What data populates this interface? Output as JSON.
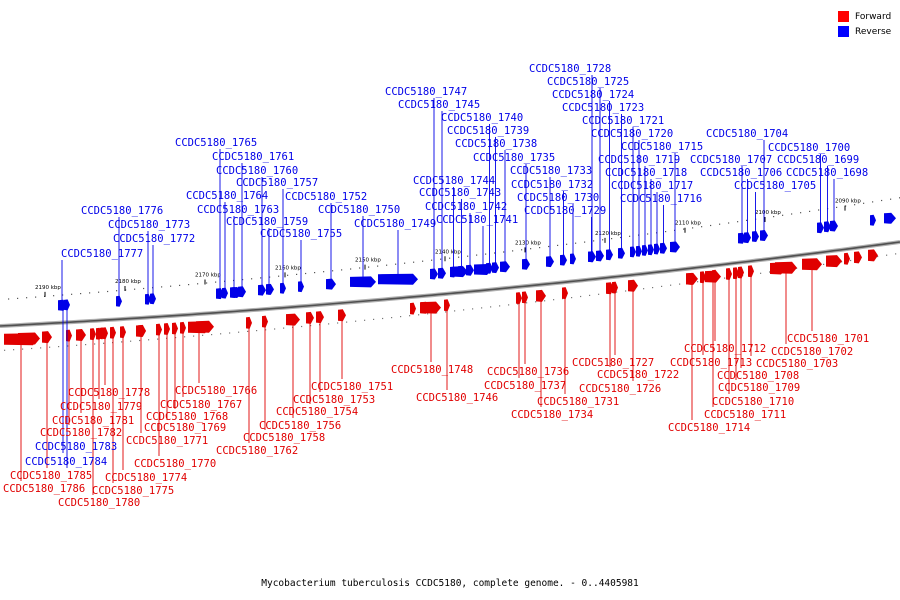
{
  "legend": [
    {
      "label": "Forward",
      "color": "#ff0000"
    },
    {
      "label": "Reverse",
      "color": "#0000ff"
    }
  ],
  "caption": "Mycobacterium tuberculosis CCDC5180, complete genome. - 0..4405981",
  "colors": {
    "forward": "#e00000",
    "reverse": "#0000e8",
    "backbone": "#8a8a8a"
  },
  "ticks": [
    {
      "label": "2190 kbp",
      "kbp": 2190
    },
    {
      "label": "2180 kbp",
      "kbp": 2180
    },
    {
      "label": "2170 kbp",
      "kbp": 2170
    },
    {
      "label": "2160 kbp",
      "kbp": 2160
    },
    {
      "label": "2150 kbp",
      "kbp": 2150
    },
    {
      "label": "2140 kbp",
      "kbp": 2140
    },
    {
      "label": "2130 kbp",
      "kbp": 2130
    },
    {
      "label": "2120 kbp",
      "kbp": 2120
    },
    {
      "label": "2110 kbp",
      "kbp": 2110
    },
    {
      "label": "2100 kbp",
      "kbp": 2100
    },
    {
      "label": "2090 kbp",
      "kbp": 2090
    }
  ],
  "genes": [
    {
      "id": "CCDC5180_1698",
      "strand": "reverse"
    },
    {
      "id": "CCDC5180_1699",
      "strand": "reverse"
    },
    {
      "id": "CCDC5180_1700",
      "strand": "reverse"
    },
    {
      "id": "CCDC5180_1701",
      "strand": "forward"
    },
    {
      "id": "CCDC5180_1702",
      "strand": "forward"
    },
    {
      "id": "CCDC5180_1703",
      "strand": "forward"
    },
    {
      "id": "CCDC5180_1704",
      "strand": "reverse"
    },
    {
      "id": "CCDC5180_1705",
      "strand": "reverse"
    },
    {
      "id": "CCDC5180_1706",
      "strand": "reverse"
    },
    {
      "id": "CCDC5180_1707",
      "strand": "reverse"
    },
    {
      "id": "CCDC5180_1708",
      "strand": "forward"
    },
    {
      "id": "CCDC5180_1709",
      "strand": "forward"
    },
    {
      "id": "CCDC5180_1710",
      "strand": "forward"
    },
    {
      "id": "CCDC5180_1711",
      "strand": "forward"
    },
    {
      "id": "CCDC5180_1712",
      "strand": "forward"
    },
    {
      "id": "CCDC5180_1713",
      "strand": "forward"
    },
    {
      "id": "CCDC5180_1714",
      "strand": "forward"
    },
    {
      "id": "CCDC5180_1715",
      "strand": "reverse"
    },
    {
      "id": "CCDC5180_1716",
      "strand": "reverse"
    },
    {
      "id": "CCDC5180_1717",
      "strand": "reverse"
    },
    {
      "id": "CCDC5180_1718",
      "strand": "reverse"
    },
    {
      "id": "CCDC5180_1719",
      "strand": "reverse"
    },
    {
      "id": "CCDC5180_1720",
      "strand": "reverse"
    },
    {
      "id": "CCDC5180_1721",
      "strand": "reverse"
    },
    {
      "id": "CCDC5180_1722",
      "strand": "forward"
    },
    {
      "id": "CCDC5180_1723",
      "strand": "reverse"
    },
    {
      "id": "CCDC5180_1724",
      "strand": "reverse"
    },
    {
      "id": "CCDC5180_1725",
      "strand": "reverse"
    },
    {
      "id": "CCDC5180_1726",
      "strand": "forward"
    },
    {
      "id": "CCDC5180_1727",
      "strand": "forward"
    },
    {
      "id": "CCDC5180_1728",
      "strand": "reverse"
    },
    {
      "id": "CCDC5180_1729",
      "strand": "reverse"
    },
    {
      "id": "CCDC5180_1730",
      "strand": "reverse"
    },
    {
      "id": "CCDC5180_1731",
      "strand": "forward"
    },
    {
      "id": "CCDC5180_1732",
      "strand": "reverse"
    },
    {
      "id": "CCDC5180_1733",
      "strand": "reverse"
    },
    {
      "id": "CCDC5180_1734",
      "strand": "forward"
    },
    {
      "id": "CCDC5180_1735",
      "strand": "reverse"
    },
    {
      "id": "CCDC5180_1736",
      "strand": "forward"
    },
    {
      "id": "CCDC5180_1737",
      "strand": "forward"
    },
    {
      "id": "CCDC5180_1738",
      "strand": "reverse"
    },
    {
      "id": "CCDC5180_1739",
      "strand": "reverse"
    },
    {
      "id": "CCDC5180_1740",
      "strand": "reverse"
    },
    {
      "id": "CCDC5180_1741",
      "strand": "reverse"
    },
    {
      "id": "CCDC5180_1742",
      "strand": "reverse"
    },
    {
      "id": "CCDC5180_1743",
      "strand": "reverse"
    },
    {
      "id": "CCDC5180_1744",
      "strand": "reverse"
    },
    {
      "id": "CCDC5180_1745",
      "strand": "reverse"
    },
    {
      "id": "CCDC5180_1746",
      "strand": "forward"
    },
    {
      "id": "CCDC5180_1747",
      "strand": "reverse"
    },
    {
      "id": "CCDC5180_1748",
      "strand": "forward"
    },
    {
      "id": "CCDC5180_1749",
      "strand": "reverse"
    },
    {
      "id": "CCDC5180_1750",
      "strand": "reverse"
    },
    {
      "id": "CCDC5180_1751",
      "strand": "forward"
    },
    {
      "id": "CCDC5180_1752",
      "strand": "reverse"
    },
    {
      "id": "CCDC5180_1753",
      "strand": "forward"
    },
    {
      "id": "CCDC5180_1754",
      "strand": "forward"
    },
    {
      "id": "CCDC5180_1755",
      "strand": "reverse"
    },
    {
      "id": "CCDC5180_1756",
      "strand": "forward"
    },
    {
      "id": "CCDC5180_1757",
      "strand": "reverse"
    },
    {
      "id": "CCDC5180_1758",
      "strand": "forward"
    },
    {
      "id": "CCDC5180_1759",
      "strand": "reverse"
    },
    {
      "id": "CCDC5180_1760",
      "strand": "reverse"
    },
    {
      "id": "CCDC5180_1761",
      "strand": "reverse"
    },
    {
      "id": "CCDC5180_1762",
      "strand": "forward"
    },
    {
      "id": "CCDC5180_1763",
      "strand": "reverse"
    },
    {
      "id": "CCDC5180_1764",
      "strand": "reverse"
    },
    {
      "id": "CCDC5180_1765",
      "strand": "reverse"
    },
    {
      "id": "CCDC5180_1766",
      "strand": "forward"
    },
    {
      "id": "CCDC5180_1767",
      "strand": "forward"
    },
    {
      "id": "CCDC5180_1768",
      "strand": "forward"
    },
    {
      "id": "CCDC5180_1769",
      "strand": "forward"
    },
    {
      "id": "CCDC5180_1770",
      "strand": "forward"
    },
    {
      "id": "CCDC5180_1771",
      "strand": "forward"
    },
    {
      "id": "CCDC5180_1772",
      "strand": "reverse"
    },
    {
      "id": "CCDC5180_1773",
      "strand": "reverse"
    },
    {
      "id": "CCDC5180_1774",
      "strand": "forward"
    },
    {
      "id": "CCDC5180_1775",
      "strand": "forward"
    },
    {
      "id": "CCDC5180_1776",
      "strand": "reverse"
    },
    {
      "id": "CCDC5180_1777",
      "strand": "reverse"
    },
    {
      "id": "CCDC5180_1778",
      "strand": "forward"
    },
    {
      "id": "CCDC5180_1779",
      "strand": "forward"
    },
    {
      "id": "CCDC5180_1780",
      "strand": "forward"
    },
    {
      "id": "CCDC5180_1781",
      "strand": "forward"
    },
    {
      "id": "CCDC5180_1782",
      "strand": "forward"
    },
    {
      "id": "CCDC5180_1783",
      "strand": "reverse"
    },
    {
      "id": "CCDC5180_1784",
      "strand": "reverse"
    },
    {
      "id": "CCDC5180_1785",
      "strand": "forward"
    },
    {
      "id": "CCDC5180_1786",
      "strand": "forward"
    }
  ]
}
